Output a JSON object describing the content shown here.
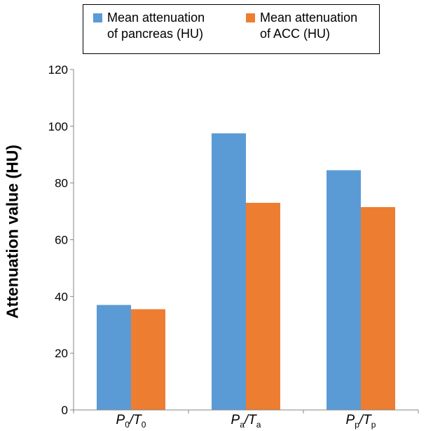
{
  "chart_data": {
    "type": "bar",
    "categories": [
      {
        "main1": "P",
        "sub1": "0",
        "main2": "T",
        "sub2": "0"
      },
      {
        "main1": "P",
        "sub1": "a",
        "main2": "T",
        "sub2": "a"
      },
      {
        "main1": "P",
        "sub1": "p",
        "main2": "T",
        "sub2": "p"
      }
    ],
    "series": [
      {
        "name": "Mean attenuation\nof pancreas (HU)",
        "color": "#5B9BD5",
        "values": [
          37,
          97.5,
          84.5
        ]
      },
      {
        "name": "Mean attenuation\nof ACC (HU)",
        "color": "#ED7D31",
        "values": [
          35.5,
          73,
          71.5
        ]
      }
    ],
    "ylabel": "Attenuation value (HU)",
    "ylim": [
      0,
      120
    ],
    "yticks": [
      "0",
      "20",
      "40",
      "60",
      "80",
      "100",
      "120"
    ],
    "grid": false,
    "legend_position": "top"
  }
}
